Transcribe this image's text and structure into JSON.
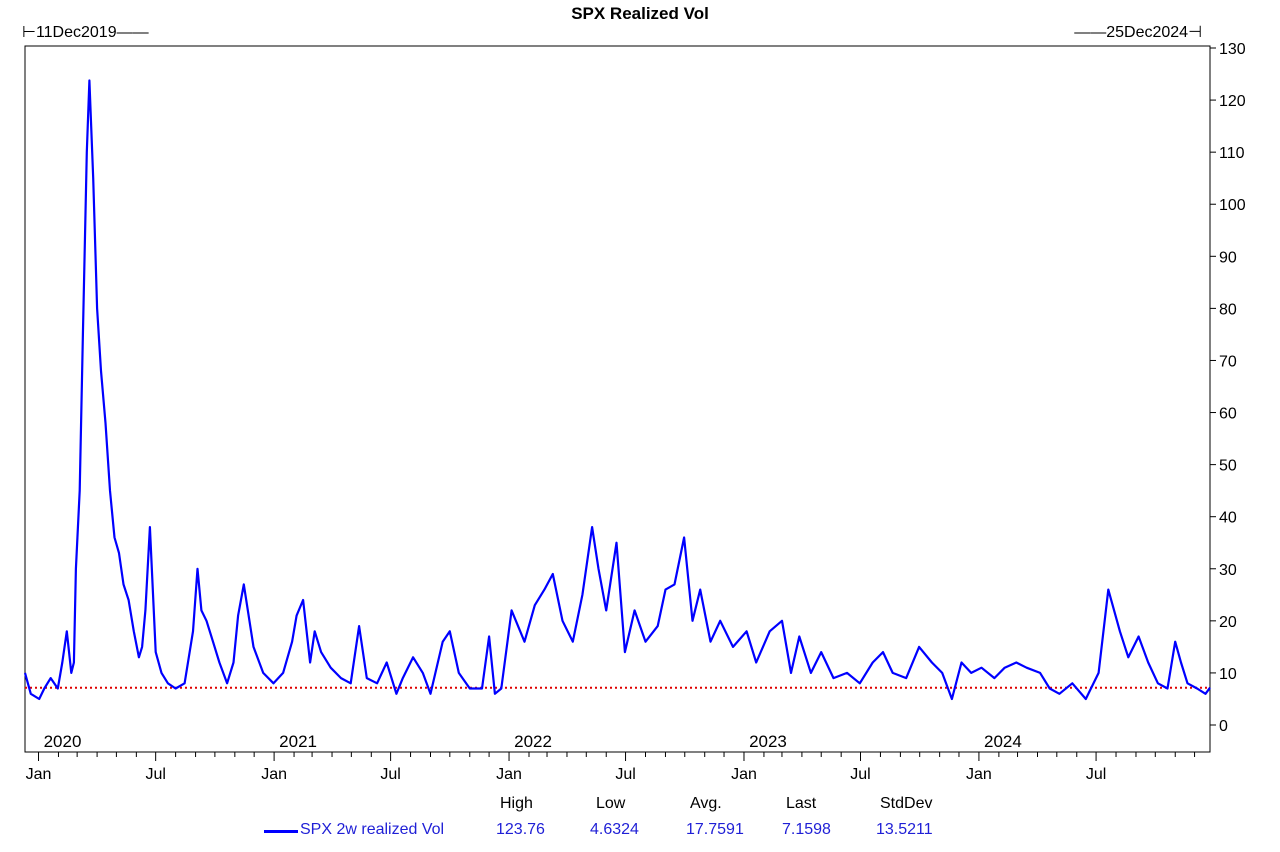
{
  "chart_data": {
    "type": "line",
    "title": "SPX Realized Vol",
    "date_start_label": "11Dec2019",
    "date_end_label": "25Dec2024",
    "ylim": [
      0,
      130
    ],
    "yticks": [
      0,
      10,
      20,
      30,
      40,
      50,
      60,
      70,
      80,
      90,
      100,
      110,
      120,
      130
    ],
    "year_labels": [
      "2020",
      "2021",
      "2022",
      "2023",
      "2024"
    ],
    "month_labels": [
      "Jan",
      "Jul",
      "Jan",
      "Jul",
      "Jan",
      "Jul",
      "Jan",
      "Jul",
      "Jan",
      "Jul"
    ],
    "grid": false,
    "reference_line": {
      "value": 7.1598,
      "color": "#e00000",
      "style": "dotted"
    },
    "series": [
      {
        "name": "SPX 2w realized Vol",
        "color": "#0000ff",
        "x": [
          "2019-12-11",
          "2019-12-20",
          "2020-01-02",
          "2020-01-10",
          "2020-01-20",
          "2020-01-31",
          "2020-02-07",
          "2020-02-14",
          "2020-02-21",
          "2020-02-25",
          "2020-02-28",
          "2020-03-05",
          "2020-03-10",
          "2020-03-16",
          "2020-03-20",
          "2020-03-26",
          "2020-04-01",
          "2020-04-07",
          "2020-04-14",
          "2020-04-21",
          "2020-04-28",
          "2020-05-05",
          "2020-05-12",
          "2020-05-20",
          "2020-05-28",
          "2020-06-05",
          "2020-06-10",
          "2020-06-15",
          "2020-06-22",
          "2020-07-01",
          "2020-07-10",
          "2020-07-20",
          "2020-08-01",
          "2020-08-15",
          "2020-08-28",
          "2020-09-04",
          "2020-09-10",
          "2020-09-18",
          "2020-09-28",
          "2020-10-08",
          "2020-10-20",
          "2020-10-30",
          "2020-11-06",
          "2020-11-15",
          "2020-11-30",
          "2020-12-15",
          "2020-12-31",
          "2021-01-15",
          "2021-01-29",
          "2021-02-05",
          "2021-02-15",
          "2021-02-26",
          "2021-03-05",
          "2021-03-15",
          "2021-03-30",
          "2021-04-15",
          "2021-04-30",
          "2021-05-13",
          "2021-05-25",
          "2021-06-10",
          "2021-06-25",
          "2021-07-10",
          "2021-07-20",
          "2021-08-05",
          "2021-08-20",
          "2021-09-01",
          "2021-09-20",
          "2021-10-01",
          "2021-10-15",
          "2021-11-01",
          "2021-11-20",
          "2021-12-01",
          "2021-12-10",
          "2021-12-20",
          "2022-01-05",
          "2022-01-25",
          "2022-02-10",
          "2022-02-25",
          "2022-03-10",
          "2022-03-25",
          "2022-04-10",
          "2022-04-25",
          "2022-05-10",
          "2022-05-20",
          "2022-06-01",
          "2022-06-17",
          "2022-06-30",
          "2022-07-15",
          "2022-08-01",
          "2022-08-20",
          "2022-09-01",
          "2022-09-15",
          "2022-09-30",
          "2022-10-13",
          "2022-10-25",
          "2022-11-10",
          "2022-11-25",
          "2022-12-15",
          "2023-01-05",
          "2023-01-20",
          "2023-02-10",
          "2023-03-01",
          "2023-03-15",
          "2023-03-28",
          "2023-04-15",
          "2023-05-01",
          "2023-05-20",
          "2023-06-10",
          "2023-06-30",
          "2023-07-20",
          "2023-08-05",
          "2023-08-20",
          "2023-09-10",
          "2023-09-30",
          "2023-10-20",
          "2023-11-05",
          "2023-11-20",
          "2023-12-05",
          "2023-12-20",
          "2024-01-05",
          "2024-01-25",
          "2024-02-10",
          "2024-02-28",
          "2024-03-15",
          "2024-04-05",
          "2024-04-20",
          "2024-05-05",
          "2024-05-25",
          "2024-06-15",
          "2024-07-05",
          "2024-07-20",
          "2024-08-07",
          "2024-08-20",
          "2024-09-05",
          "2024-09-20",
          "2024-10-05",
          "2024-10-20",
          "2024-11-01",
          "2024-11-10",
          "2024-11-20",
          "2024-12-05",
          "2024-12-18",
          "2024-12-25"
        ],
        "values": [
          10,
          6,
          5,
          7,
          9,
          7,
          12,
          18,
          10,
          12,
          30,
          45,
          75,
          110,
          123.76,
          105,
          80,
          68,
          58,
          45,
          36,
          33,
          27,
          24,
          18,
          13,
          15,
          22,
          38,
          14,
          10,
          8,
          7,
          8,
          18,
          30,
          22,
          20,
          16,
          12,
          8,
          12,
          21,
          27,
          15,
          10,
          8,
          10,
          16,
          21,
          24,
          12,
          18,
          14,
          11,
          9,
          8,
          19,
          9,
          8,
          12,
          6,
          9,
          13,
          10,
          6,
          16,
          18,
          10,
          7,
          7,
          17,
          6,
          7,
          22,
          16,
          23,
          26,
          29,
          20,
          16,
          25,
          38,
          30,
          22,
          35,
          14,
          22,
          16,
          19,
          26,
          27,
          36,
          20,
          26,
          16,
          20,
          15,
          18,
          12,
          18,
          20,
          10,
          17,
          10,
          14,
          9,
          10,
          8,
          12,
          14,
          10,
          9,
          15,
          12,
          10,
          5,
          12,
          10,
          11,
          9,
          11,
          12,
          11,
          10,
          7,
          6,
          8,
          5,
          10,
          26,
          18,
          13,
          17,
          12,
          8,
          7,
          16,
          12,
          8,
          7,
          6,
          7.1598
        ]
      }
    ]
  },
  "stats": {
    "headers": [
      "High",
      "Low",
      "Avg.",
      "Last",
      "StdDev"
    ],
    "values": [
      "123.76",
      "4.6324",
      "17.7591",
      "7.1598",
      "13.5211"
    ],
    "series_label": "SPX 2w realized Vol"
  }
}
